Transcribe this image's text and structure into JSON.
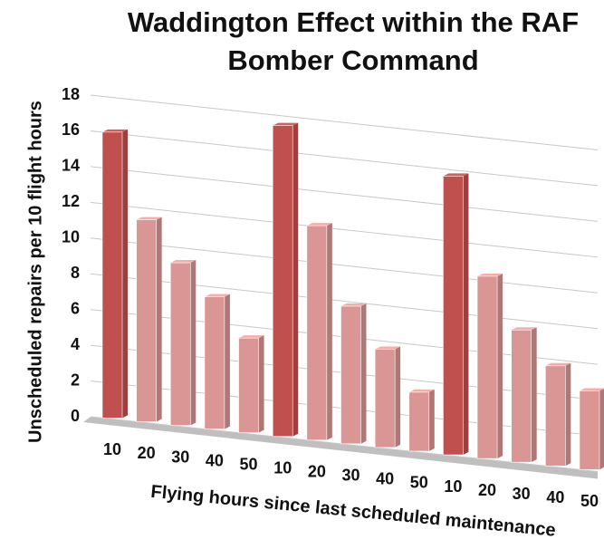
{
  "chart_data": {
    "type": "bar3d",
    "title": "Waddington Effect within the RAF Bomber Command",
    "xlabel": "Flying hours since last scheduled maintenance",
    "ylabel": "Unscheduled repairs per 10 flight hours",
    "categories": [
      "10",
      "20",
      "30",
      "40",
      "50",
      "10",
      "20",
      "30",
      "40",
      "50",
      "10",
      "20",
      "30",
      "40",
      "50"
    ],
    "values": [
      16,
      11.3,
      9.1,
      7.4,
      5.3,
      17.4,
      12,
      7.7,
      5.5,
      3.3,
      15.6,
      10.2,
      7.4,
      5.6,
      4.4
    ],
    "colors": [
      "#c0504d",
      "#d99694",
      "#d99694",
      "#d99694",
      "#d99694",
      "#c0504d",
      "#d99694",
      "#d99694",
      "#d99694",
      "#d99694",
      "#c0504d",
      "#d99694",
      "#d99694",
      "#d99694",
      "#d99694"
    ],
    "ylim": [
      0,
      18
    ],
    "yticks": [
      0,
      2,
      4,
      6,
      8,
      10,
      12,
      14,
      16,
      18
    ],
    "grid": true
  }
}
